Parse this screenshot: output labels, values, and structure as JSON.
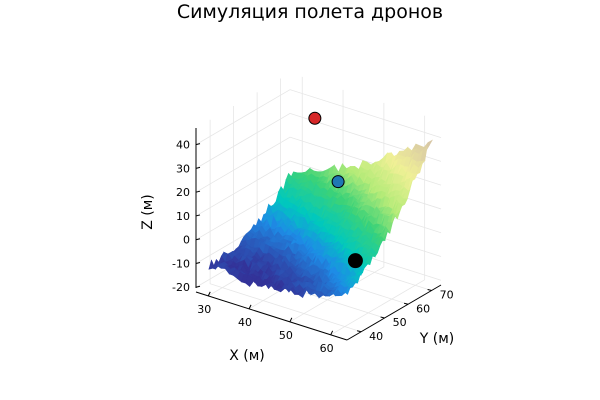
{
  "chart_data": {
    "type": "surface3d",
    "title": "Симуляция полета дронов",
    "xlabel": "X (м)",
    "ylabel": "Y (м)",
    "zlabel": "Z (м)",
    "x_ticks": [
      30,
      40,
      50,
      60
    ],
    "y_ticks": [
      40,
      50,
      60,
      70
    ],
    "z_ticks": [
      -20,
      -10,
      0,
      10,
      20,
      30,
      40
    ],
    "xlim": [
      27,
      64
    ],
    "ylim": [
      34,
      74
    ],
    "zlim": [
      -22,
      47
    ],
    "surface": {
      "colormap": "terrain",
      "z_low": -12,
      "z_high": 40
    },
    "drones": [
      {
        "x": 40,
        "y": 62,
        "z": 42,
        "color": "#d62728",
        "size": 6
      },
      {
        "x": 48,
        "y": 58,
        "z": 22,
        "color": "#1f77b4",
        "size": 6
      },
      {
        "x": 58,
        "y": 48,
        "z": 0,
        "color": "#000000",
        "size": 7
      }
    ]
  }
}
